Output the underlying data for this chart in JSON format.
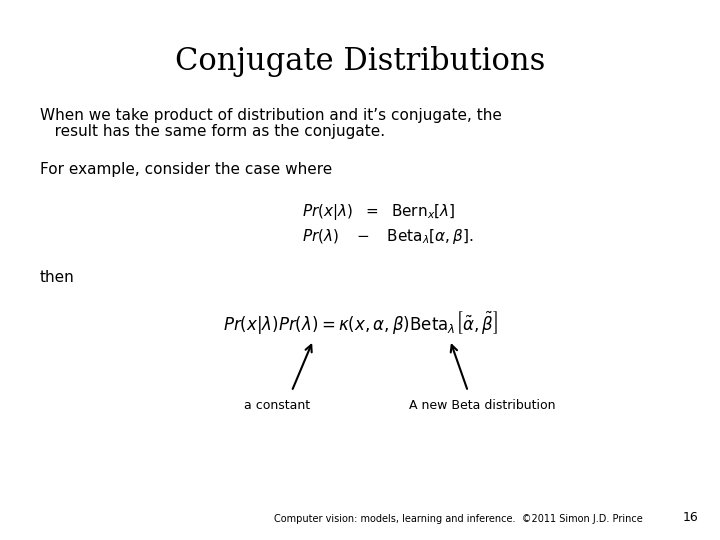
{
  "title": "Conjugate Distributions",
  "title_fontsize": 22,
  "body_text_1_line1": "When we take product of distribution and it’s conjugate, the",
  "body_text_1_line2": "   result has the same form as the conjugate.",
  "body_text_fontsize": 11,
  "body_text_2": "For example, consider the case where",
  "eq_fontsize": 11,
  "then_text": "then",
  "then_fontsize": 11,
  "label1": "a constant",
  "label2": "A new Beta distribution",
  "label_fontsize": 9,
  "footer_text": "Computer vision: models, learning and inference.  ©2011 Simon J.D. Prince",
  "footer_fontsize": 7,
  "page_num": "16",
  "page_num_fontsize": 9,
  "background_color": "#ffffff",
  "text_color": "#000000"
}
